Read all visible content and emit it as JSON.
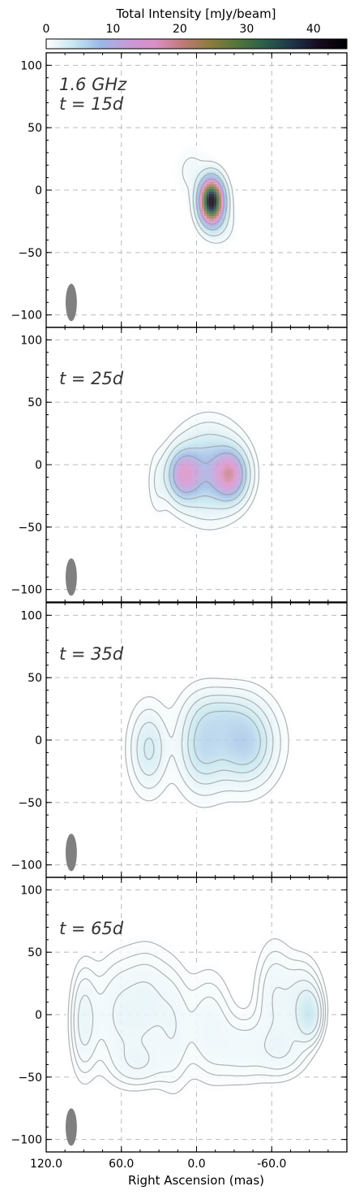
{
  "chart_data": {
    "type": "heatmap",
    "colorbar": {
      "label": "Total Intensity [mJy/beam]",
      "range": [
        0,
        45
      ],
      "ticks": [
        0,
        10,
        20,
        30,
        40
      ],
      "tick_labels": [
        "0",
        "10",
        "20",
        "30",
        "40"
      ],
      "colors": [
        "#ffffff",
        "#c6e6ef",
        "#9ab8e6",
        "#c79ad8",
        "#dc8ec6",
        "#bf7a77",
        "#8c7b3c",
        "#52753a",
        "#2a5e4a",
        "#1d344a",
        "#170a1e",
        "#000000"
      ]
    },
    "xlabel": "Right Ascension (mas)",
    "xlim": [
      120,
      -120
    ],
    "xticks": [
      120,
      60,
      0,
      -60
    ],
    "xtick_labels": [
      "120.0",
      "60.0",
      "0.0",
      "-60.0"
    ],
    "ylim": [
      -110,
      110
    ],
    "yticks": [
      -100,
      -50,
      0,
      50,
      100
    ],
    "ytick_labels": [
      "−100",
      "−50",
      "0",
      "50",
      "100"
    ],
    "grid": true,
    "beam": {
      "x": 100,
      "y": -90,
      "major": 15,
      "minor": 9
    },
    "panels": [
      {
        "frequency_label": "1.6 GHz",
        "epoch_label": "t = 15d",
        "components": [
          {
            "x": -12,
            "y": -9,
            "peak": 45,
            "sx": 6,
            "sy": 11
          },
          {
            "x": 4,
            "y": 15,
            "peak": 1.2,
            "sx": 8,
            "sy": 12
          },
          {
            "x": -20,
            "y": -28,
            "peak": 1.5,
            "sx": 7,
            "sy": 10
          }
        ],
        "contour_levels": [
          0.8,
          2.5,
          6,
          12
        ]
      },
      {
        "frequency_label": "",
        "epoch_label": "t = 25d",
        "components": [
          {
            "x": 10,
            "y": -8,
            "peak": 13,
            "sx": 8,
            "sy": 12
          },
          {
            "x": -27,
            "y": -8,
            "peak": 15,
            "sx": 8,
            "sy": 12
          },
          {
            "x": -10,
            "y": -5,
            "peak": 8,
            "sx": 15,
            "sy": 20
          },
          {
            "x": 31,
            "y": -15,
            "peak": 1.1,
            "sx": 5,
            "sy": 16
          }
        ],
        "contour_levels": [
          0.5,
          1.2,
          2.8,
          5.5,
          9
        ]
      },
      {
        "frequency_label": "",
        "epoch_label": "t = 35d",
        "components": [
          {
            "x": 38,
            "y": -7,
            "peak": 3.5,
            "sx": 9,
            "sy": 20
          },
          {
            "x": -5,
            "y": -4,
            "peak": 5,
            "sx": 12,
            "sy": 22
          },
          {
            "x": -38,
            "y": -2,
            "peak": 6.5,
            "sx": 15,
            "sy": 20
          },
          {
            "x": -20,
            "y": 22,
            "peak": 2,
            "sx": 15,
            "sy": 12
          }
        ],
        "contour_levels": [
          0.4,
          1.0,
          2.0,
          3.2,
          4.5
        ]
      },
      {
        "frequency_label": "",
        "epoch_label": "t = 65d",
        "components": [
          {
            "x": 90,
            "y": -5,
            "peak": 1.6,
            "sx": 7,
            "sy": 28
          },
          {
            "x": 62,
            "y": 0,
            "peak": 1.4,
            "sx": 14,
            "sy": 30
          },
          {
            "x": 38,
            "y": 10,
            "peak": 1.3,
            "sx": 12,
            "sy": 28
          },
          {
            "x": 45,
            "y": -40,
            "peak": 1.0,
            "sx": 14,
            "sy": 12
          },
          {
            "x": 18,
            "y": -12,
            "peak": 1.1,
            "sx": 9,
            "sy": 32
          },
          {
            "x": -10,
            "y": -8,
            "peak": 1.2,
            "sx": 12,
            "sy": 28
          },
          {
            "x": -38,
            "y": -28,
            "peak": 1.1,
            "sx": 16,
            "sy": 18
          },
          {
            "x": -62,
            "y": 15,
            "peak": 1.3,
            "sx": 10,
            "sy": 28
          },
          {
            "x": -85,
            "y": 10,
            "peak": 1.6,
            "sx": 10,
            "sy": 22
          },
          {
            "x": -90,
            "y": 0,
            "peak": 3.0,
            "sx": 6,
            "sy": 12
          },
          {
            "x": -70,
            "y": -30,
            "peak": 1.0,
            "sx": 12,
            "sy": 14
          }
        ],
        "contour_levels": [
          0.35,
          0.6,
          0.9,
          1.4,
          2.2
        ]
      }
    ]
  }
}
